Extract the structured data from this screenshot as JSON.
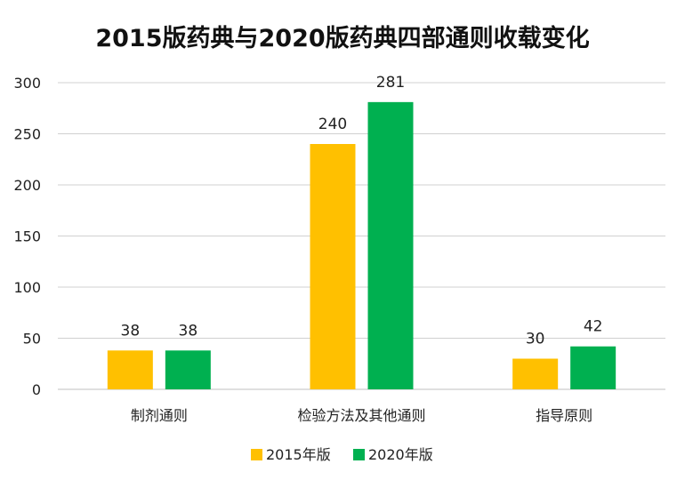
{
  "chart_data": {
    "type": "bar",
    "title": "2015版药典与2020版药典四部通则收载变化",
    "categories": [
      "制剂通则",
      "检验方法及其他通则",
      "指导原则"
    ],
    "series": [
      {
        "name": "2015年版",
        "values": [
          38,
          240,
          30
        ],
        "color": "#FFC000"
      },
      {
        "name": "2020年版",
        "values": [
          38,
          281,
          42
        ],
        "color": "#00B050"
      }
    ],
    "yticks": [
      0,
      50,
      100,
      150,
      200,
      250,
      300
    ],
    "ylim": [
      0,
      300
    ],
    "xlabel": "",
    "ylabel": "",
    "grid": true,
    "legend_position": "bottom"
  }
}
